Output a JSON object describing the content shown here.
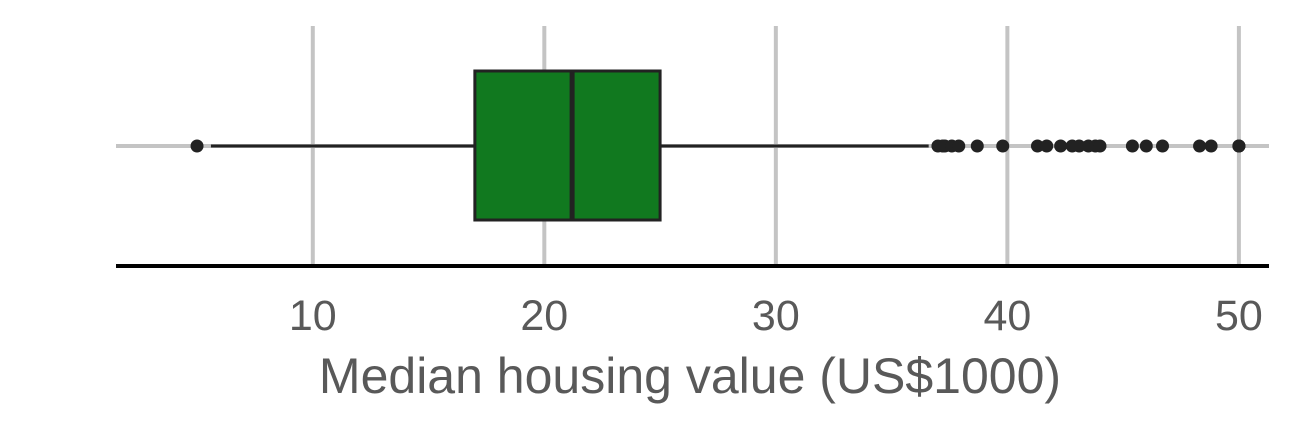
{
  "chart_data": {
    "type": "boxplot",
    "orientation": "horizontal",
    "xlabel": "Median housing value (US$1000)",
    "ylabel": "",
    "xlim": [
      1.5,
      51.3
    ],
    "x_ticks": [
      10,
      20,
      30,
      40,
      50
    ],
    "x_tick_labels": [
      "10",
      "20",
      "30",
      "40",
      "50"
    ],
    "grid": true,
    "box": {
      "q1": 17.0,
      "median": 21.2,
      "q3": 25.0,
      "whisker_low": 5.6,
      "whisker_high": 36.6
    },
    "outliers": [
      5.0,
      37.0,
      37.2,
      37.3,
      37.6,
      37.9,
      38.7,
      39.8,
      41.3,
      41.7,
      42.3,
      42.8,
      43.1,
      43.5,
      43.8,
      44.0,
      45.4,
      46.0,
      46.7,
      48.3,
      48.8,
      50.0,
      50.0,
      50.0
    ],
    "colors": {
      "box_fill": "#11791f",
      "line": "#222222",
      "grid": "#c4c4c4",
      "axis": "#000000",
      "text": "#595959"
    }
  }
}
